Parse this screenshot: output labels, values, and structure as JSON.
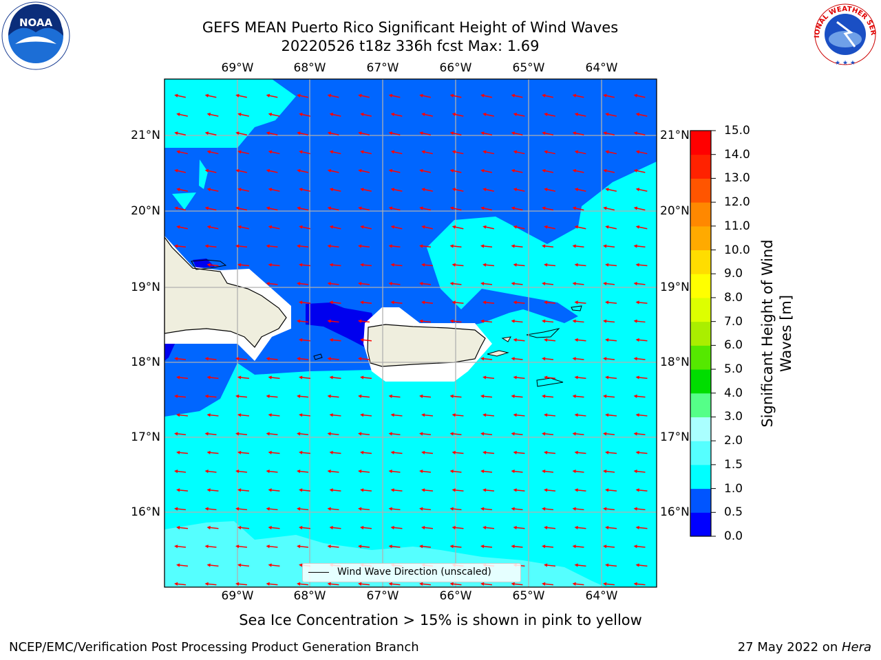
{
  "title": {
    "line1": "GEFS MEAN Puerto Rico Significant Height of Wind Waves",
    "line2": "20220526 t18z 336h fcst   Max: 1.69"
  },
  "lon_labels": [
    "69°W",
    "68°W",
    "67°W",
    "66°W",
    "65°W",
    "64°W"
  ],
  "lat_labels": [
    "21°N",
    "20°N",
    "19°N",
    "18°N",
    "17°N",
    "16°N"
  ],
  "colorbar": {
    "label": "Significant Height of Wind Waves [m]",
    "ticks": [
      "15.0",
      "14.0",
      "13.0",
      "12.0",
      "11.0",
      "10.0",
      "9.0",
      "8.0",
      "7.0",
      "6.0",
      "5.0",
      "4.0",
      "3.0",
      "2.0",
      "1.5",
      "1.0",
      "0.5",
      "0.0"
    ],
    "colors": [
      "#0000ff",
      "#0055ff",
      "#00ffff",
      "#55ffff",
      "#aaffff",
      "#55ff88",
      "#00dd00",
      "#55e800",
      "#aaee00",
      "#ddff00",
      "#ffff00",
      "#ffdd00",
      "#ffaa00",
      "#ff8800",
      "#ff5500",
      "#ff2200",
      "#ff0000"
    ]
  },
  "legend": {
    "label": "Wind Wave Direction (unscaled)"
  },
  "note": "Sea Ice Concentration > 15% is shown in pink to yellow",
  "footer": {
    "left": "NCEP/EMC/Verification Post Processing Product Generation Branch",
    "right_prefix": "27 May 2022 on ",
    "right_host": "Hera"
  },
  "logos": {
    "noaa": "NOAA",
    "nws": "NATIONAL WEATHER SERVICE"
  },
  "map_colors": {
    "land": "#efeede",
    "deep_blue": "#0000ee",
    "blue": "#0066ff",
    "cyan": "#00ffff",
    "light_cyan": "#55ffff",
    "arrow": "#ff0000",
    "grid": "#b0b0b0"
  }
}
